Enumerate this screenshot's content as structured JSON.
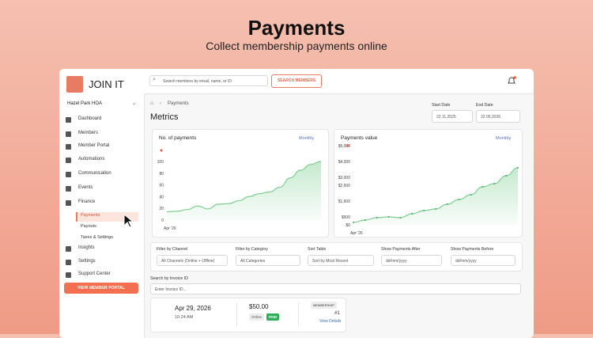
{
  "header": {
    "title": "Payments",
    "subtitle": "Collect membership payments online"
  },
  "sidebar": {
    "brand": "JOIN IT",
    "org": "Hazel Park HOA",
    "nav": [
      "Dashboard",
      "Members",
      "Member Portal",
      "Automations",
      "Communication",
      "Events",
      "Finance"
    ],
    "finance_sub": [
      "Payments",
      "Payouts",
      "Taxes & Settings"
    ],
    "nav_bottom": [
      "Insights",
      "Settings",
      "Support Center"
    ],
    "button": "VIEW MEMBER PORTAL"
  },
  "topbar": {
    "search_placeholder": "Search members by email, name, or ID",
    "search_button": "SEARCH MEMBERS"
  },
  "breadcrumb": "Payments",
  "heading": "Metrics",
  "dates": {
    "start_label": "Start Date",
    "start_value": "22.11.2025",
    "end_label": "End Date",
    "end_value": "22.05.2026"
  },
  "charts": [
    {
      "type": "line",
      "title": "No. of payments",
      "period": "Monthly",
      "xlabel": "Apr '26",
      "color": "#7fcf92",
      "values": [
        14,
        15,
        18,
        24,
        19,
        27,
        28,
        33,
        40,
        45,
        48,
        56,
        72,
        85,
        95,
        100
      ],
      "ylim": [
        0,
        100
      ],
      "yticks": [
        0,
        20,
        40,
        60,
        80,
        100
      ],
      "markers": false
    },
    {
      "type": "line",
      "title": "Payments value",
      "period": "Monthly",
      "xlabel": "Apr '26",
      "color": "#7fcf92",
      "values": [
        150,
        300,
        450,
        500,
        450,
        700,
        900,
        1000,
        1300,
        1600,
        1900,
        2400,
        2600,
        3100,
        3600
      ],
      "ylim": [
        0,
        5000
      ],
      "yticks": [
        {
          "value": 0,
          "label": "$0"
        },
        {
          "value": 500,
          "label": "$500"
        },
        {
          "value": 1500,
          "label": "$1,500"
        },
        {
          "value": 2500,
          "label": "$2,500"
        },
        {
          "value": 3000,
          "label": "$3,000"
        },
        {
          "value": 4000,
          "label": "$4,000"
        },
        {
          "value": 5000,
          "label": "$5,000"
        }
      ],
      "markers": true
    }
  ],
  "filters": [
    {
      "label": "Filter by Channel",
      "value": "All Channels (Online + Offline)"
    },
    {
      "label": "Filter by Category",
      "value": "All Categories"
    },
    {
      "label": "Sort Table",
      "value": "Sort by Most Recent"
    },
    {
      "label": "Show Payments After",
      "value": "dd/mm/yyyy"
    },
    {
      "label": "Show Payments Before",
      "value": "dd/mm/yyyy"
    }
  ],
  "invoice_search": {
    "label": "Search by Invoice ID",
    "placeholder": "Enter Invoice ID..."
  },
  "payment": {
    "date": "Apr 29, 2026",
    "time": "10:24 AM",
    "amount": "$50.00",
    "channel": "Online",
    "status": "PAID",
    "category": "MEMBERSHIP",
    "number": "#1",
    "link": "View Details"
  }
}
